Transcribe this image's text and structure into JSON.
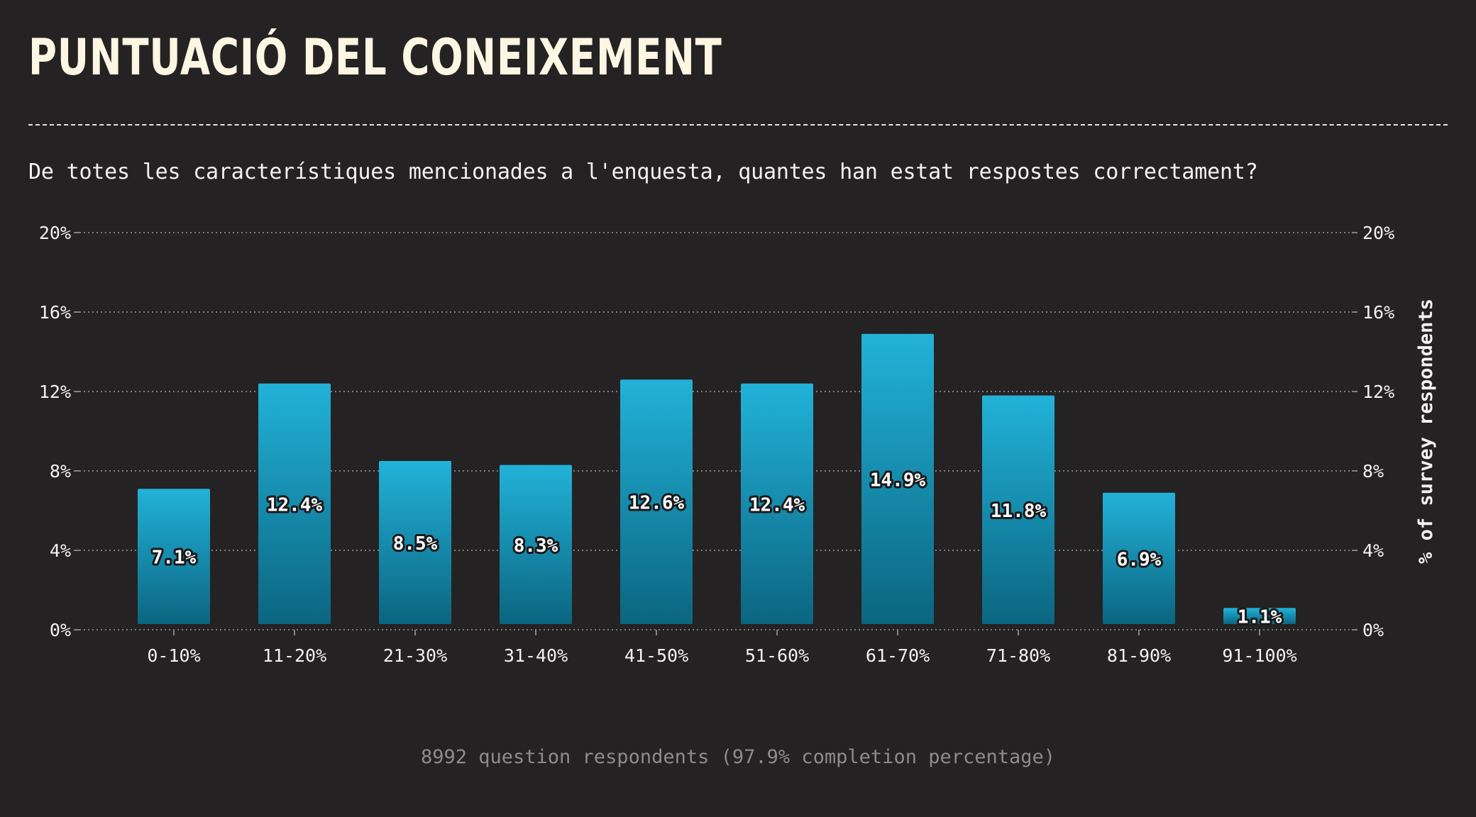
{
  "title": "PUNTUACIÓ DEL CONEIXEMENT",
  "subtitle": "De totes les característiques mencionades a l'enquesta, quantes han estat respostes correctament?",
  "footer": "8992 question respondents (97.9% completion percentage)",
  "colors": {
    "background": "#252223",
    "bar_top": "#22b2d9",
    "bar_bottom": "#0b6580",
    "text": "#f2f2f2",
    "title": "#fdf6e3",
    "grid": "#9a9a9a"
  },
  "chart_data": {
    "type": "bar",
    "categories": [
      "0-10%",
      "11-20%",
      "21-30%",
      "31-40%",
      "41-50%",
      "51-60%",
      "61-70%",
      "71-80%",
      "81-90%",
      "91-100%"
    ],
    "values": [
      7.1,
      12.4,
      8.5,
      8.3,
      12.6,
      12.4,
      14.9,
      11.8,
      6.9,
      1.1
    ],
    "value_labels": [
      "7.1%",
      "12.4%",
      "8.5%",
      "8.3%",
      "12.6%",
      "12.4%",
      "14.9%",
      "11.8%",
      "6.9%",
      "1.1%"
    ],
    "ylim": [
      0,
      20
    ],
    "yticks": [
      0,
      4,
      8,
      12,
      16,
      20
    ],
    "ytick_labels": [
      "0%",
      "4%",
      "8%",
      "12%",
      "16%",
      "20%"
    ],
    "ylabel_right": "% of survey respondents",
    "xlabel": "",
    "grid": true,
    "legend": false
  }
}
